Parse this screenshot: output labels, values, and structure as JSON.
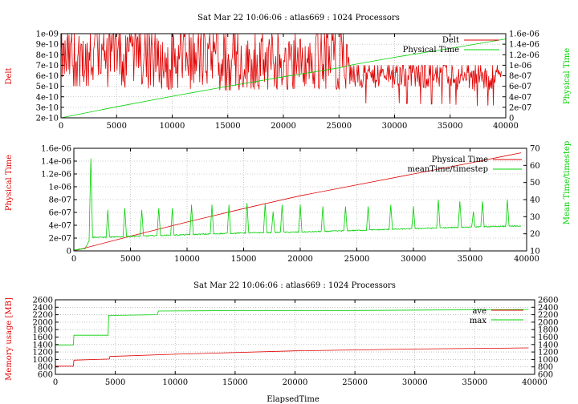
{
  "colors": {
    "red": "#e00000",
    "green": "#00d000",
    "grid": "#a0a0a0",
    "axis": "#000000"
  },
  "chart_data": [
    {
      "type": "line",
      "title": "Sat Mar 22 10:06:06 : atlas669 : 1024 Processors",
      "xlabel": "",
      "ylabel": "Delt",
      "y2label": "Physical Time",
      "xlim": [
        0,
        40000
      ],
      "ylim": [
        2e-10,
        1e-09
      ],
      "y2lim": [
        0,
        1.6e-06
      ],
      "xticks": [
        0,
        5000,
        10000,
        15000,
        20000,
        25000,
        30000,
        35000,
        40000
      ],
      "xtick_labels": [
        "0",
        "5000",
        "10000",
        "15000",
        "20000",
        "25000",
        "30000",
        "35000",
        "40000"
      ],
      "yticks": [
        2e-10,
        3e-10,
        4e-10,
        5e-10,
        6e-10,
        7e-10,
        8e-10,
        9e-10,
        1e-09
      ],
      "ytick_labels": [
        "2e-10",
        "3e-10",
        "4e-10",
        "5e-10",
        "6e-10",
        "7e-10",
        "8e-10",
        "9e-10",
        "1e-09"
      ],
      "y2ticks": [
        0,
        2e-07,
        4e-07,
        6e-07,
        8e-07,
        1e-06,
        1.2e-06,
        1.4e-06,
        1.6e-06
      ],
      "y2tick_labels": [
        "0",
        "2e-07",
        "4e-07",
        "6e-07",
        "8e-07",
        "1e-06",
        "1.2e-06",
        "1.4e-06",
        "1.6e-06"
      ],
      "grid": true,
      "legend_position": "top-right",
      "series": [
        {
          "name": "Delt",
          "axis": "y",
          "color": "#e00000",
          "x": [
            0,
            2500,
            5000,
            7500,
            10000,
            12500,
            15000,
            17500,
            20000,
            22500,
            25000,
            25800,
            26000,
            28000,
            30000,
            32500,
            35000,
            36500,
            37000,
            39500
          ],
          "y": [
            7.5e-10,
            7.5e-10,
            7.4e-10,
            7.3e-10,
            7.2e-10,
            7.2e-10,
            7.1e-10,
            7.2e-10,
            7.2e-10,
            7.3e-10,
            7.2e-10,
            7.3e-10,
            5.8e-10,
            5.9e-10,
            5.9e-10,
            5.8e-10,
            5.8e-10,
            5.6e-10,
            5.6e-10,
            5.7e-10
          ]
        },
        {
          "name": "Physical Time",
          "axis": "y2",
          "color": "#00d000",
          "x": [
            0,
            5000,
            10000,
            15000,
            20000,
            25000,
            26000,
            30000,
            35000,
            40000
          ],
          "y": [
            0,
            2.1e-07,
            4.1e-07,
            6e-07,
            7.8e-07,
            9.5e-07,
            1e-06,
            1.15e-06,
            1.32e-06,
            1.5e-06
          ]
        }
      ]
    },
    {
      "type": "line",
      "title": "",
      "xlabel": "",
      "ylabel": "Physical Time",
      "y2label": "Mean Time/timestep",
      "xlim": [
        0,
        40000
      ],
      "ylim": [
        0,
        1.6e-06
      ],
      "y2lim": [
        10,
        70
      ],
      "xticks": [
        0,
        5000,
        10000,
        15000,
        20000,
        25000,
        30000,
        35000,
        40000
      ],
      "xtick_labels": [
        "0",
        "5000",
        "10000",
        "15000",
        "20000",
        "25000",
        "30000",
        "35000",
        "40000"
      ],
      "yticks": [
        0,
        2e-07,
        4e-07,
        6e-07,
        8e-07,
        1e-06,
        1.2e-06,
        1.4e-06,
        1.6e-06
      ],
      "ytick_labels": [
        "0",
        "2e-07",
        "4e-07",
        "6e-07",
        "8e-07",
        "1e-06",
        "1.2e-06",
        "1.4e-06",
        "1.6e-06"
      ],
      "y2ticks": [
        10,
        20,
        30,
        40,
        50,
        60,
        70
      ],
      "y2tick_labels": [
        "10",
        "20",
        "30",
        "40",
        "50",
        "60",
        "70"
      ],
      "grid": true,
      "legend_position": "top-right",
      "series": [
        {
          "name": "Physical Time",
          "axis": "y",
          "color": "#e00000",
          "x": [
            0,
            5000,
            10000,
            15000,
            20000,
            25000,
            30000,
            35000,
            39500
          ],
          "y": [
            0,
            2.3e-07,
            4.5e-07,
            6.6e-07,
            8.6e-07,
            1.03e-06,
            1.2e-06,
            1.37e-06,
            1.53e-06
          ]
        },
        {
          "name": "meanTime/timestep",
          "axis": "y2",
          "color": "#00d000",
          "baseline": [
            [
              0,
              10.5
            ],
            [
              1000,
              11.5
            ],
            [
              1500,
              18
            ],
            [
              3000,
              18
            ],
            [
              5000,
              18.5
            ],
            [
              10000,
              19.5
            ],
            [
              15000,
              20.5
            ],
            [
              20000,
              21
            ],
            [
              25000,
              22
            ],
            [
              30000,
              23
            ],
            [
              35000,
              24
            ],
            [
              39500,
              24.5
            ]
          ],
          "spikes": [
            [
              1500,
              64
            ],
            [
              3000,
              34
            ],
            [
              4500,
              35
            ],
            [
              6000,
              34
            ],
            [
              7500,
              35
            ],
            [
              8700,
              35
            ],
            [
              10400,
              37
            ],
            [
              12200,
              37
            ],
            [
              13700,
              37
            ],
            [
              15300,
              38
            ],
            [
              16900,
              38
            ],
            [
              17600,
              33
            ],
            [
              18400,
              37
            ],
            [
              20000,
              37
            ],
            [
              22000,
              36
            ],
            [
              24000,
              36
            ],
            [
              26000,
              36
            ],
            [
              28000,
              37
            ],
            [
              30000,
              36
            ],
            [
              32200,
              40
            ],
            [
              34100,
              39
            ],
            [
              35300,
              33
            ],
            [
              36100,
              39
            ],
            [
              38300,
              40
            ]
          ]
        }
      ]
    },
    {
      "type": "line",
      "title": "Sat Mar 22 10:06:06 : atlas669 : 1024 Processors",
      "xlabel": "ElapsedTime",
      "ylabel": "Memory usage [MB]",
      "y2label": "",
      "xlim": [
        0,
        40000
      ],
      "ylim": [
        600,
        2600
      ],
      "y2lim": [
        600,
        2600
      ],
      "xticks": [
        0,
        5000,
        10000,
        15000,
        20000,
        25000,
        30000,
        35000,
        40000
      ],
      "xtick_labels": [
        "0",
        "5000",
        "10000",
        "15000",
        "20000",
        "25000",
        "30000",
        "35000",
        "40000"
      ],
      "yticks": [
        600,
        800,
        1000,
        1200,
        1400,
        1600,
        1800,
        2000,
        2200,
        2400,
        2600
      ],
      "ytick_labels": [
        "600",
        "800",
        "1000",
        "1200",
        "1400",
        "1600",
        "1800",
        "2000",
        "2200",
        "2400",
        "2600"
      ],
      "y2ticks": [
        600,
        800,
        1000,
        1200,
        1400,
        1600,
        1800,
        2000,
        2200,
        2400,
        2600
      ],
      "y2tick_labels": [
        "600",
        "800",
        "1000",
        "1200",
        "1400",
        "1600",
        "1800",
        "2000",
        "2200",
        "2400",
        "2600"
      ],
      "grid": true,
      "legend_position": "top-right",
      "series": [
        {
          "name": "ave",
          "axis": "y",
          "color": "#e00000",
          "x": [
            0,
            1500,
            1550,
            4500,
            4550,
            10000,
            20000,
            30000,
            39500
          ],
          "y": [
            820,
            820,
            980,
            1010,
            1080,
            1140,
            1230,
            1280,
            1310
          ]
        },
        {
          "name": "max",
          "axis": "y",
          "color": "#00d000",
          "x": [
            0,
            1500,
            1550,
            4400,
            4450,
            8500,
            8600,
            15000,
            25000,
            39500
          ],
          "y": [
            1390,
            1390,
            1650,
            1650,
            2180,
            2200,
            2300,
            2310,
            2315,
            2340
          ]
        }
      ]
    }
  ]
}
